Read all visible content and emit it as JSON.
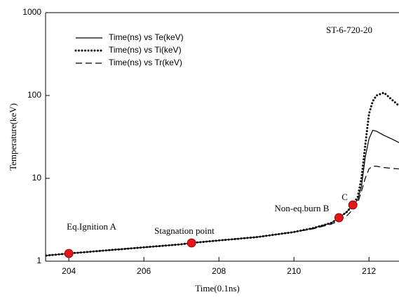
{
  "chart_data": {
    "type": "line",
    "log_y": true,
    "x_label": "Time(0.1ns)",
    "y_label": "Temperature(keV)",
    "note": "ST-6-720-20",
    "x": [
      203.4,
      204,
      205,
      206,
      207,
      207.27,
      208,
      209,
      210,
      210.5,
      211,
      211.2,
      211.4,
      211.57,
      211.7,
      211.8,
      211.9,
      212,
      212.1,
      212.2,
      212.4,
      212.6,
      212.8
    ],
    "series": [
      {
        "name": "Time(ns) vs Te(keV)",
        "color": "#000000",
        "dash": "solid",
        "values": [
          1.17,
          1.24,
          1.35,
          1.47,
          1.6,
          1.66,
          1.78,
          1.95,
          2.25,
          2.5,
          2.9,
          3.35,
          3.9,
          4.77,
          5.5,
          8,
          18,
          30,
          38,
          37,
          33,
          30,
          27
        ]
      },
      {
        "name": "Time(ns) vs Ti(keV)",
        "color": "#000000",
        "dash": "dotted",
        "values": [
          1.17,
          1.24,
          1.35,
          1.47,
          1.6,
          1.66,
          1.78,
          1.95,
          2.25,
          2.5,
          2.9,
          3.35,
          3.9,
          4.77,
          6,
          10,
          25,
          60,
          85,
          100,
          108,
          90,
          75
        ]
      },
      {
        "name": "Time(ns) vs Tr(keV)",
        "color": "#000000",
        "dash": "dashed",
        "values": [
          1.17,
          1.24,
          1.35,
          1.47,
          1.6,
          1.66,
          1.78,
          1.95,
          2.25,
          2.45,
          2.8,
          3.1,
          3.5,
          4.2,
          5,
          7,
          10,
          13,
          14,
          14,
          13.5,
          13.2,
          13
        ]
      }
    ],
    "markers": {
      "color": "#e8141c",
      "x": [
        204,
        207.27,
        211.2,
        211.57
      ],
      "values": [
        1.24,
        1.66,
        3.35,
        4.77
      ],
      "labels": [
        "Eq.Ignition A",
        "Stagnation point",
        "Non-eq.burn B",
        "C"
      ]
    },
    "xlim": [
      203.38,
      212.8
    ],
    "ylim": [
      1,
      1000
    ],
    "xticks": [
      204,
      206,
      208,
      210,
      212
    ],
    "yticks": [
      1,
      10,
      100,
      1000
    ]
  }
}
